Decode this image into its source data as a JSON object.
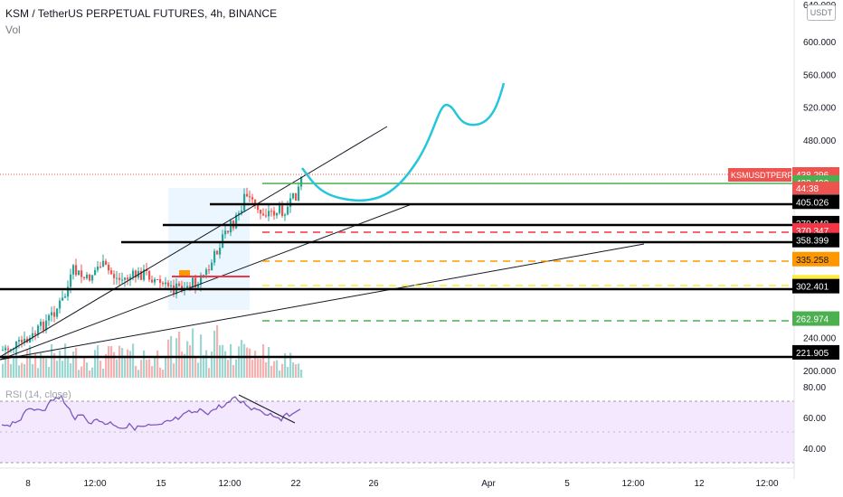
{
  "header": {
    "title": "KSM / TetherUS PERPETUAL FUTURES, 4h, BINANCE",
    "volume_label": "Vol",
    "currency_button": "USDT"
  },
  "rsi": {
    "label": "RSI (14, close)",
    "axis_ticks": [
      "80.00",
      "60.00",
      "40.00"
    ],
    "band_color": "#f3e8fd",
    "line_color": "#7e57c2"
  },
  "colors": {
    "up": "#26a69a",
    "down": "#ef5350",
    "forecast": "#26c6da",
    "level_solid": "#000000",
    "level_red": "#f23645",
    "level_orange": "#ff9800",
    "level_yellow": "#ffeb3b",
    "level_green": "#4caf50",
    "price_badge": "#ef5350"
  },
  "chart_data": {
    "type": "candlestick",
    "symbol": "KSMUSDTPERP",
    "last_price": "438.296",
    "countdown": "44:38",
    "x_ticks": [
      "8",
      "12:00",
      "15",
      "12:00",
      "19",
      "22",
      "26",
      "Apr",
      "5",
      "12:00",
      "12",
      "12:00"
    ],
    "y_ticks": [
      "600.000",
      "560.000",
      "520.000",
      "480.000",
      "240.000",
      "200.000"
    ],
    "y_top_label": "640.000",
    "price_labels": [
      {
        "value": "438.296",
        "style": "last"
      },
      {
        "value": "428.490",
        "style": "green"
      },
      {
        "value": "405.026",
        "style": "black"
      },
      {
        "value": "379.048",
        "style": "black"
      },
      {
        "value": "370.347",
        "style": "red"
      },
      {
        "value": "358.399",
        "style": "black"
      },
      {
        "value": "335.258",
        "style": "orange"
      },
      {
        "value": "307.187",
        "style": "yellow"
      },
      {
        "value": "302.401",
        "style": "black"
      },
      {
        "value": "262.974",
        "style": "green"
      },
      {
        "value": "221.905",
        "style": "black"
      }
    ]
  }
}
